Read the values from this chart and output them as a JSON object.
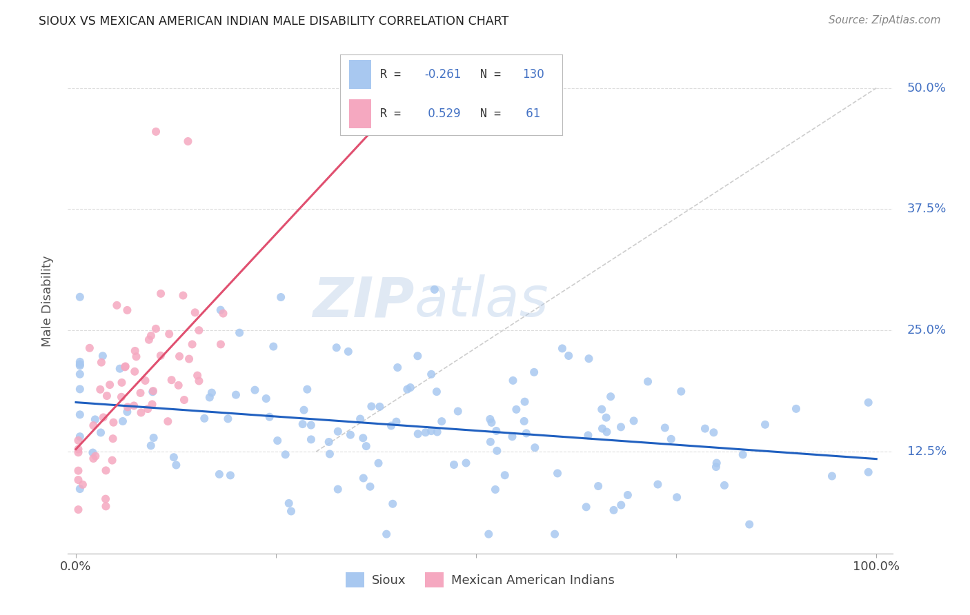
{
  "title": "SIOUX VS MEXICAN AMERICAN INDIAN MALE DISABILITY CORRELATION CHART",
  "source": "Source: ZipAtlas.com",
  "ylabel": "Male Disability",
  "ytick_labels": [
    "12.5%",
    "25.0%",
    "37.5%",
    "50.0%"
  ],
  "ytick_values": [
    0.125,
    0.25,
    0.375,
    0.5
  ],
  "blue_color": "#A8C8F0",
  "pink_color": "#F5A8C0",
  "blue_line_color": "#2060C0",
  "pink_line_color": "#E05070",
  "diagonal_color": "#C8C8C8",
  "watermark_zip": "ZIP",
  "watermark_atlas": "atlas",
  "xlim": [
    -0.01,
    1.02
  ],
  "ylim": [
    0.02,
    0.54
  ],
  "blue_slope": -0.06,
  "blue_intercept": 0.185,
  "pink_slope": 0.6,
  "pink_intercept": 0.125,
  "pink_line_xstart": 0.0,
  "pink_line_xend": 0.42,
  "diag_xstart": 0.3,
  "diag_xend": 1.0,
  "diag_ystart": 0.125,
  "diag_yend": 0.5
}
